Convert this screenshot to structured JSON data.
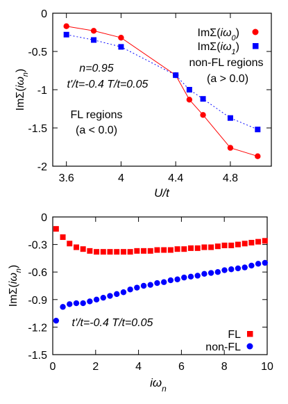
{
  "chart_data": [
    {
      "type": "line",
      "ylabel": "ImΣ(iω_n)",
      "xlabel": "U/t",
      "xlim": [
        3.5,
        5.1
      ],
      "ylim": [
        -2,
        0
      ],
      "xticks": [
        "3.6",
        "4",
        "4.4",
        "4.8"
      ],
      "xtick_values": [
        3.6,
        4.0,
        4.4,
        4.8
      ],
      "yticks": [
        "0",
        "-0.5",
        "-1",
        "-1.5",
        "-2"
      ],
      "ytick_values": [
        0,
        -0.5,
        -1,
        -1.5,
        -2
      ],
      "grid": false,
      "legend_position": "top-right",
      "series": [
        {
          "name": "ImΣ(iω0)",
          "color": "#ff0000",
          "marker": "circle",
          "line_style": "solid",
          "x": [
            3.6,
            3.8,
            4.0,
            4.4,
            4.5,
            4.6,
            4.8,
            5.0
          ],
          "y": [
            -0.17,
            -0.23,
            -0.32,
            -0.81,
            -1.13,
            -1.33,
            -1.76,
            -1.87
          ]
        },
        {
          "name": "ImΣ(iω1)",
          "color": "#0000ff",
          "marker": "square",
          "line_style": "dotted",
          "x": [
            3.6,
            3.8,
            4.0,
            4.4,
            4.5,
            4.6,
            4.8,
            5.0
          ],
          "y": [
            -0.28,
            -0.35,
            -0.44,
            -0.81,
            -1.0,
            -1.12,
            -1.37,
            -1.52
          ]
        }
      ],
      "annotations": {
        "n": "n=0.95",
        "params": "t'/t=-0.4 T/t=0.05",
        "nonfl_line1": "non-FL regions",
        "nonfl_line2": "(a > 0.0)",
        "fl_line1": "FL regions",
        "fl_line2": "(a < 0.0)"
      }
    },
    {
      "type": "scatter",
      "ylabel": "ImΣ(iω_n)",
      "xlabel": "iω_n",
      "xlim": [
        0,
        10
      ],
      "ylim": [
        -1.5,
        0
      ],
      "xticks": [
        "0",
        "2",
        "4",
        "6",
        "8",
        "10"
      ],
      "xtick_values": [
        0,
        2,
        4,
        6,
        8,
        10
      ],
      "yticks": [
        "0",
        "-0.3",
        "-0.6",
        "-0.9",
        "-1.2",
        "-1.5"
      ],
      "ytick_values": [
        0,
        -0.3,
        -0.6,
        -0.9,
        -1.2,
        -1.5
      ],
      "grid": false,
      "legend_position": "bottom-right",
      "series": [
        {
          "name": "FL",
          "color": "#ff0000",
          "marker": "square",
          "x": [
            0.157,
            0.471,
            0.785,
            1.1,
            1.414,
            1.728,
            2.042,
            2.356,
            2.67,
            2.985,
            3.299,
            3.613,
            3.927,
            4.241,
            4.555,
            4.869,
            5.184,
            5.498,
            5.812,
            6.126,
            6.44,
            6.754,
            7.069,
            7.383,
            7.697,
            8.011,
            8.325,
            8.639,
            8.954,
            9.268,
            9.582,
            9.896
          ],
          "y": [
            -0.13,
            -0.22,
            -0.29,
            -0.33,
            -0.35,
            -0.37,
            -0.38,
            -0.38,
            -0.38,
            -0.38,
            -0.38,
            -0.38,
            -0.37,
            -0.37,
            -0.37,
            -0.36,
            -0.36,
            -0.36,
            -0.35,
            -0.35,
            -0.34,
            -0.34,
            -0.33,
            -0.33,
            -0.32,
            -0.31,
            -0.31,
            -0.3,
            -0.29,
            -0.28,
            -0.27,
            -0.26
          ]
        },
        {
          "name": "non-FL",
          "color": "#0000ff",
          "marker": "circle",
          "x": [
            0.157,
            0.471,
            0.785,
            1.1,
            1.414,
            1.728,
            2.042,
            2.356,
            2.67,
            2.985,
            3.299,
            3.613,
            3.927,
            4.241,
            4.555,
            4.869,
            5.184,
            5.498,
            5.812,
            6.126,
            6.44,
            6.754,
            7.069,
            7.383,
            7.697,
            8.011,
            8.325,
            8.639,
            8.954,
            9.268,
            9.582,
            9.896
          ],
          "y": [
            -1.13,
            -0.98,
            -0.95,
            -0.94,
            -0.94,
            -0.92,
            -0.9,
            -0.88,
            -0.86,
            -0.84,
            -0.82,
            -0.79,
            -0.77,
            -0.75,
            -0.74,
            -0.72,
            -0.71,
            -0.69,
            -0.68,
            -0.66,
            -0.65,
            -0.64,
            -0.62,
            -0.61,
            -0.6,
            -0.58,
            -0.57,
            -0.56,
            -0.55,
            -0.53,
            -0.51,
            -0.5
          ]
        }
      ],
      "annotations": {
        "params": "t'/t=-0.4 T/t=0.05"
      }
    }
  ]
}
